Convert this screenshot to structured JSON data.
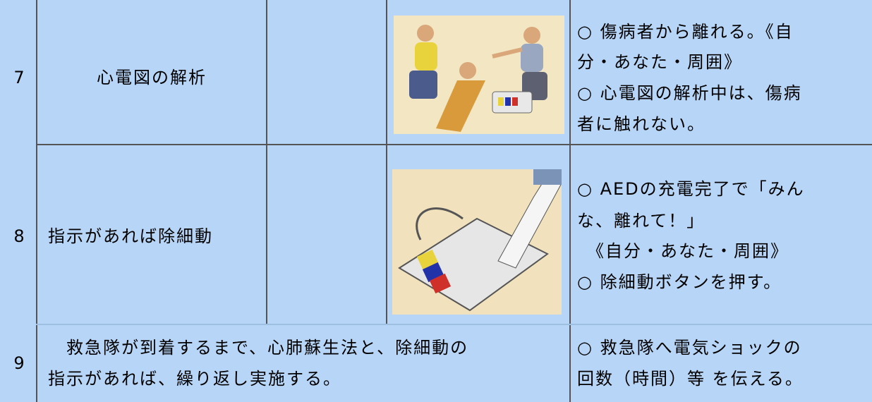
{
  "table": {
    "rows": [
      {
        "number": "7",
        "step": "心電図の解析",
        "notes": [
          "○ 傷病者から離れる。《自",
          "分・あなた・周囲》",
          "○ 心電図の解析中は、傷病",
          "者に触れない。"
        ]
      },
      {
        "number": "8",
        "step": "指示があれば除細動",
        "notes": [
          "○ AEDの充電完了で「みん",
          "な、離れて！」",
          "　《自分・あなた・周囲》",
          "○ 除細動ボタンを押す。"
        ]
      },
      {
        "number": "9",
        "step_lines": [
          "　救急隊が到着するまで、心肺蘇生法と、除細動の",
          "指示があれば、繰り返し実施する。"
        ],
        "notes": [
          "○ 救急隊へ電気ショックの",
          "回数（時間）等 を伝える。"
        ]
      }
    ]
  }
}
